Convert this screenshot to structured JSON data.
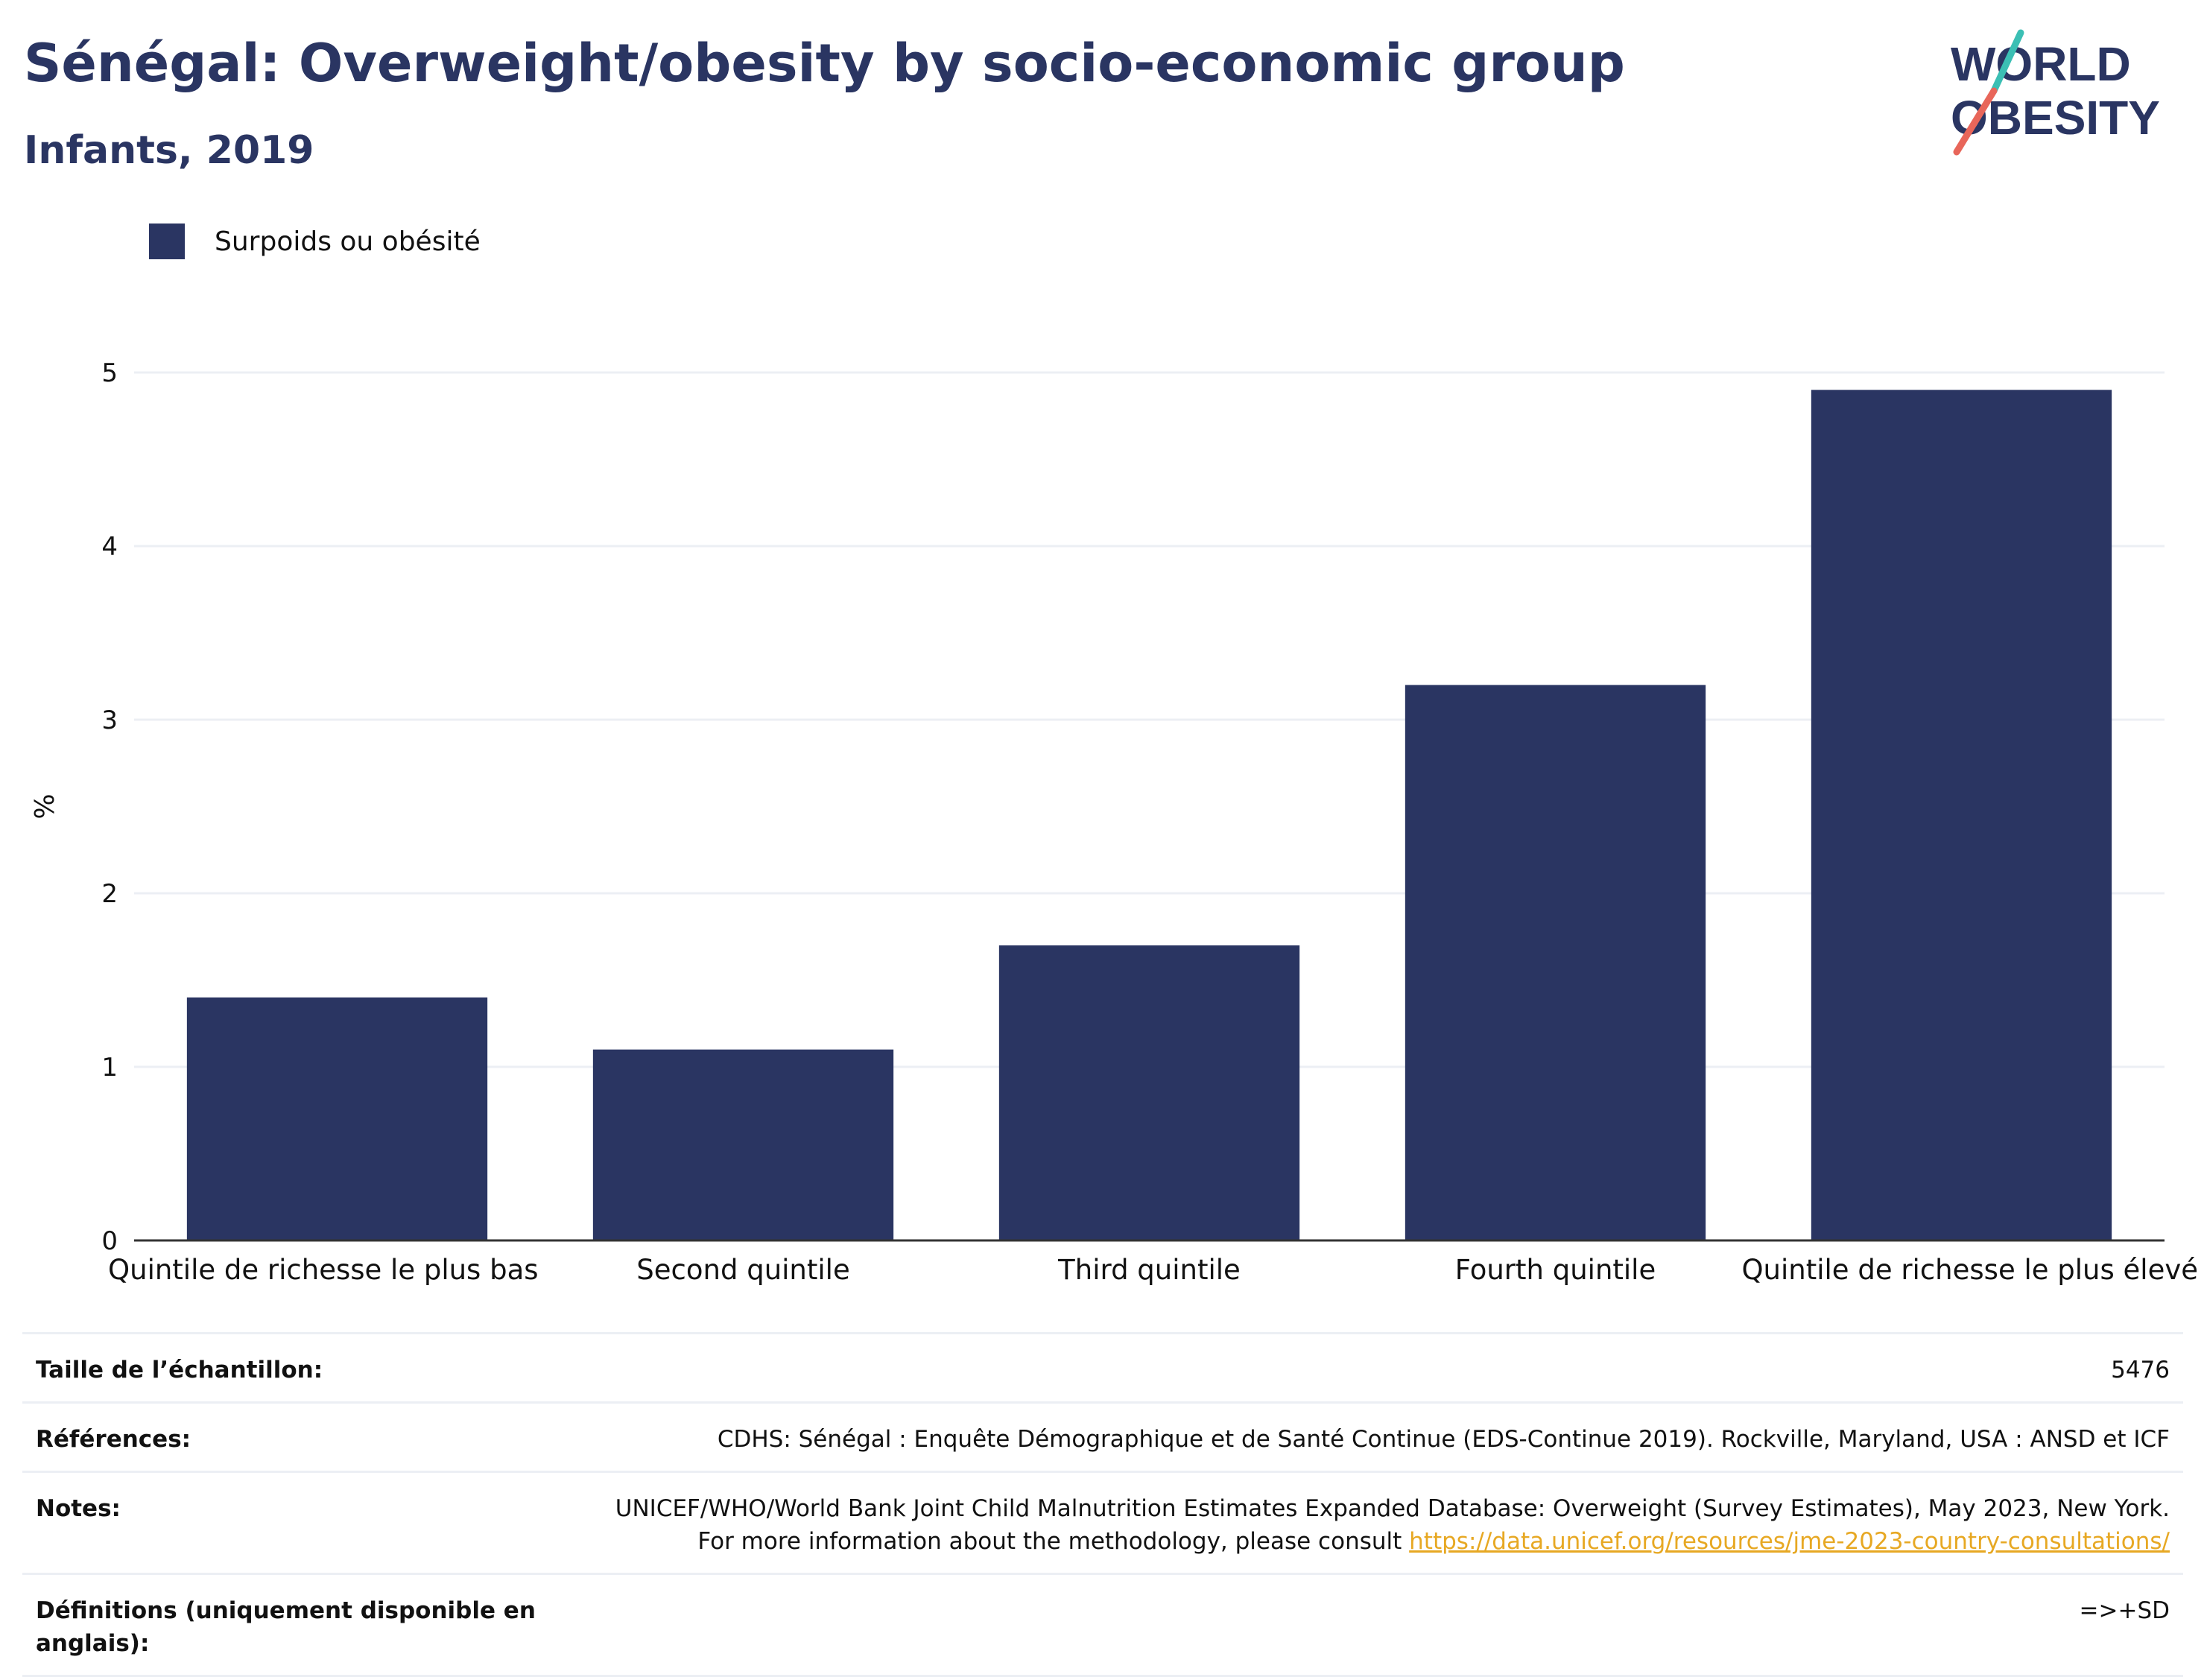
{
  "header": {
    "title": "Sénégal: Overweight/obesity by socio-economic group",
    "subtitle": "Infants, 2019"
  },
  "logo": {
    "line1": "WORLD",
    "line2": "OBESITY"
  },
  "legend": {
    "label": "Surpoids ou obésité"
  },
  "colors": {
    "bar": "#2a3562",
    "brand_text": "#2a3562",
    "logo_slash_top": "#3bbfb4",
    "logo_slash_bottom": "#e8665a",
    "link": "#e7a823"
  },
  "chart_data": {
    "type": "bar",
    "categories": [
      "Quintile de richesse le plus bas",
      "Second quintile",
      "Third quintile",
      "Fourth quintile",
      "Quintile de richesse le plus élevé"
    ],
    "series": [
      {
        "name": "Surpoids ou obésité",
        "values": [
          1.4,
          1.1,
          1.7,
          3.2,
          4.9
        ]
      }
    ],
    "ylabel": "%",
    "ylim": [
      0,
      5
    ],
    "yticks": [
      0,
      1,
      2,
      3,
      4,
      5
    ],
    "grid": true,
    "legend_position": "top-left"
  },
  "info": [
    {
      "label": "Taille de l’échantillon:",
      "value": "5476"
    },
    {
      "label": "Références:",
      "value": "CDHS: Sénégal : Enquête Démographique et de Santé Continue (EDS-Continue 2019). Rockville, Maryland, USA : ANSD et ICF"
    },
    {
      "label": "Notes:",
      "value": "UNICEF/WHO/World Bank Joint Child Malnutrition Estimates Expanded Database: Overweight (Survey Estimates), May 2023, New York. For more information about the methodology, please consult",
      "link": "https://data.unicef.org/resources/jme-2023-country-consultations/"
    },
    {
      "label": "Définitions (uniquement disponible en anglais):",
      "value": "=>+SD"
    }
  ]
}
